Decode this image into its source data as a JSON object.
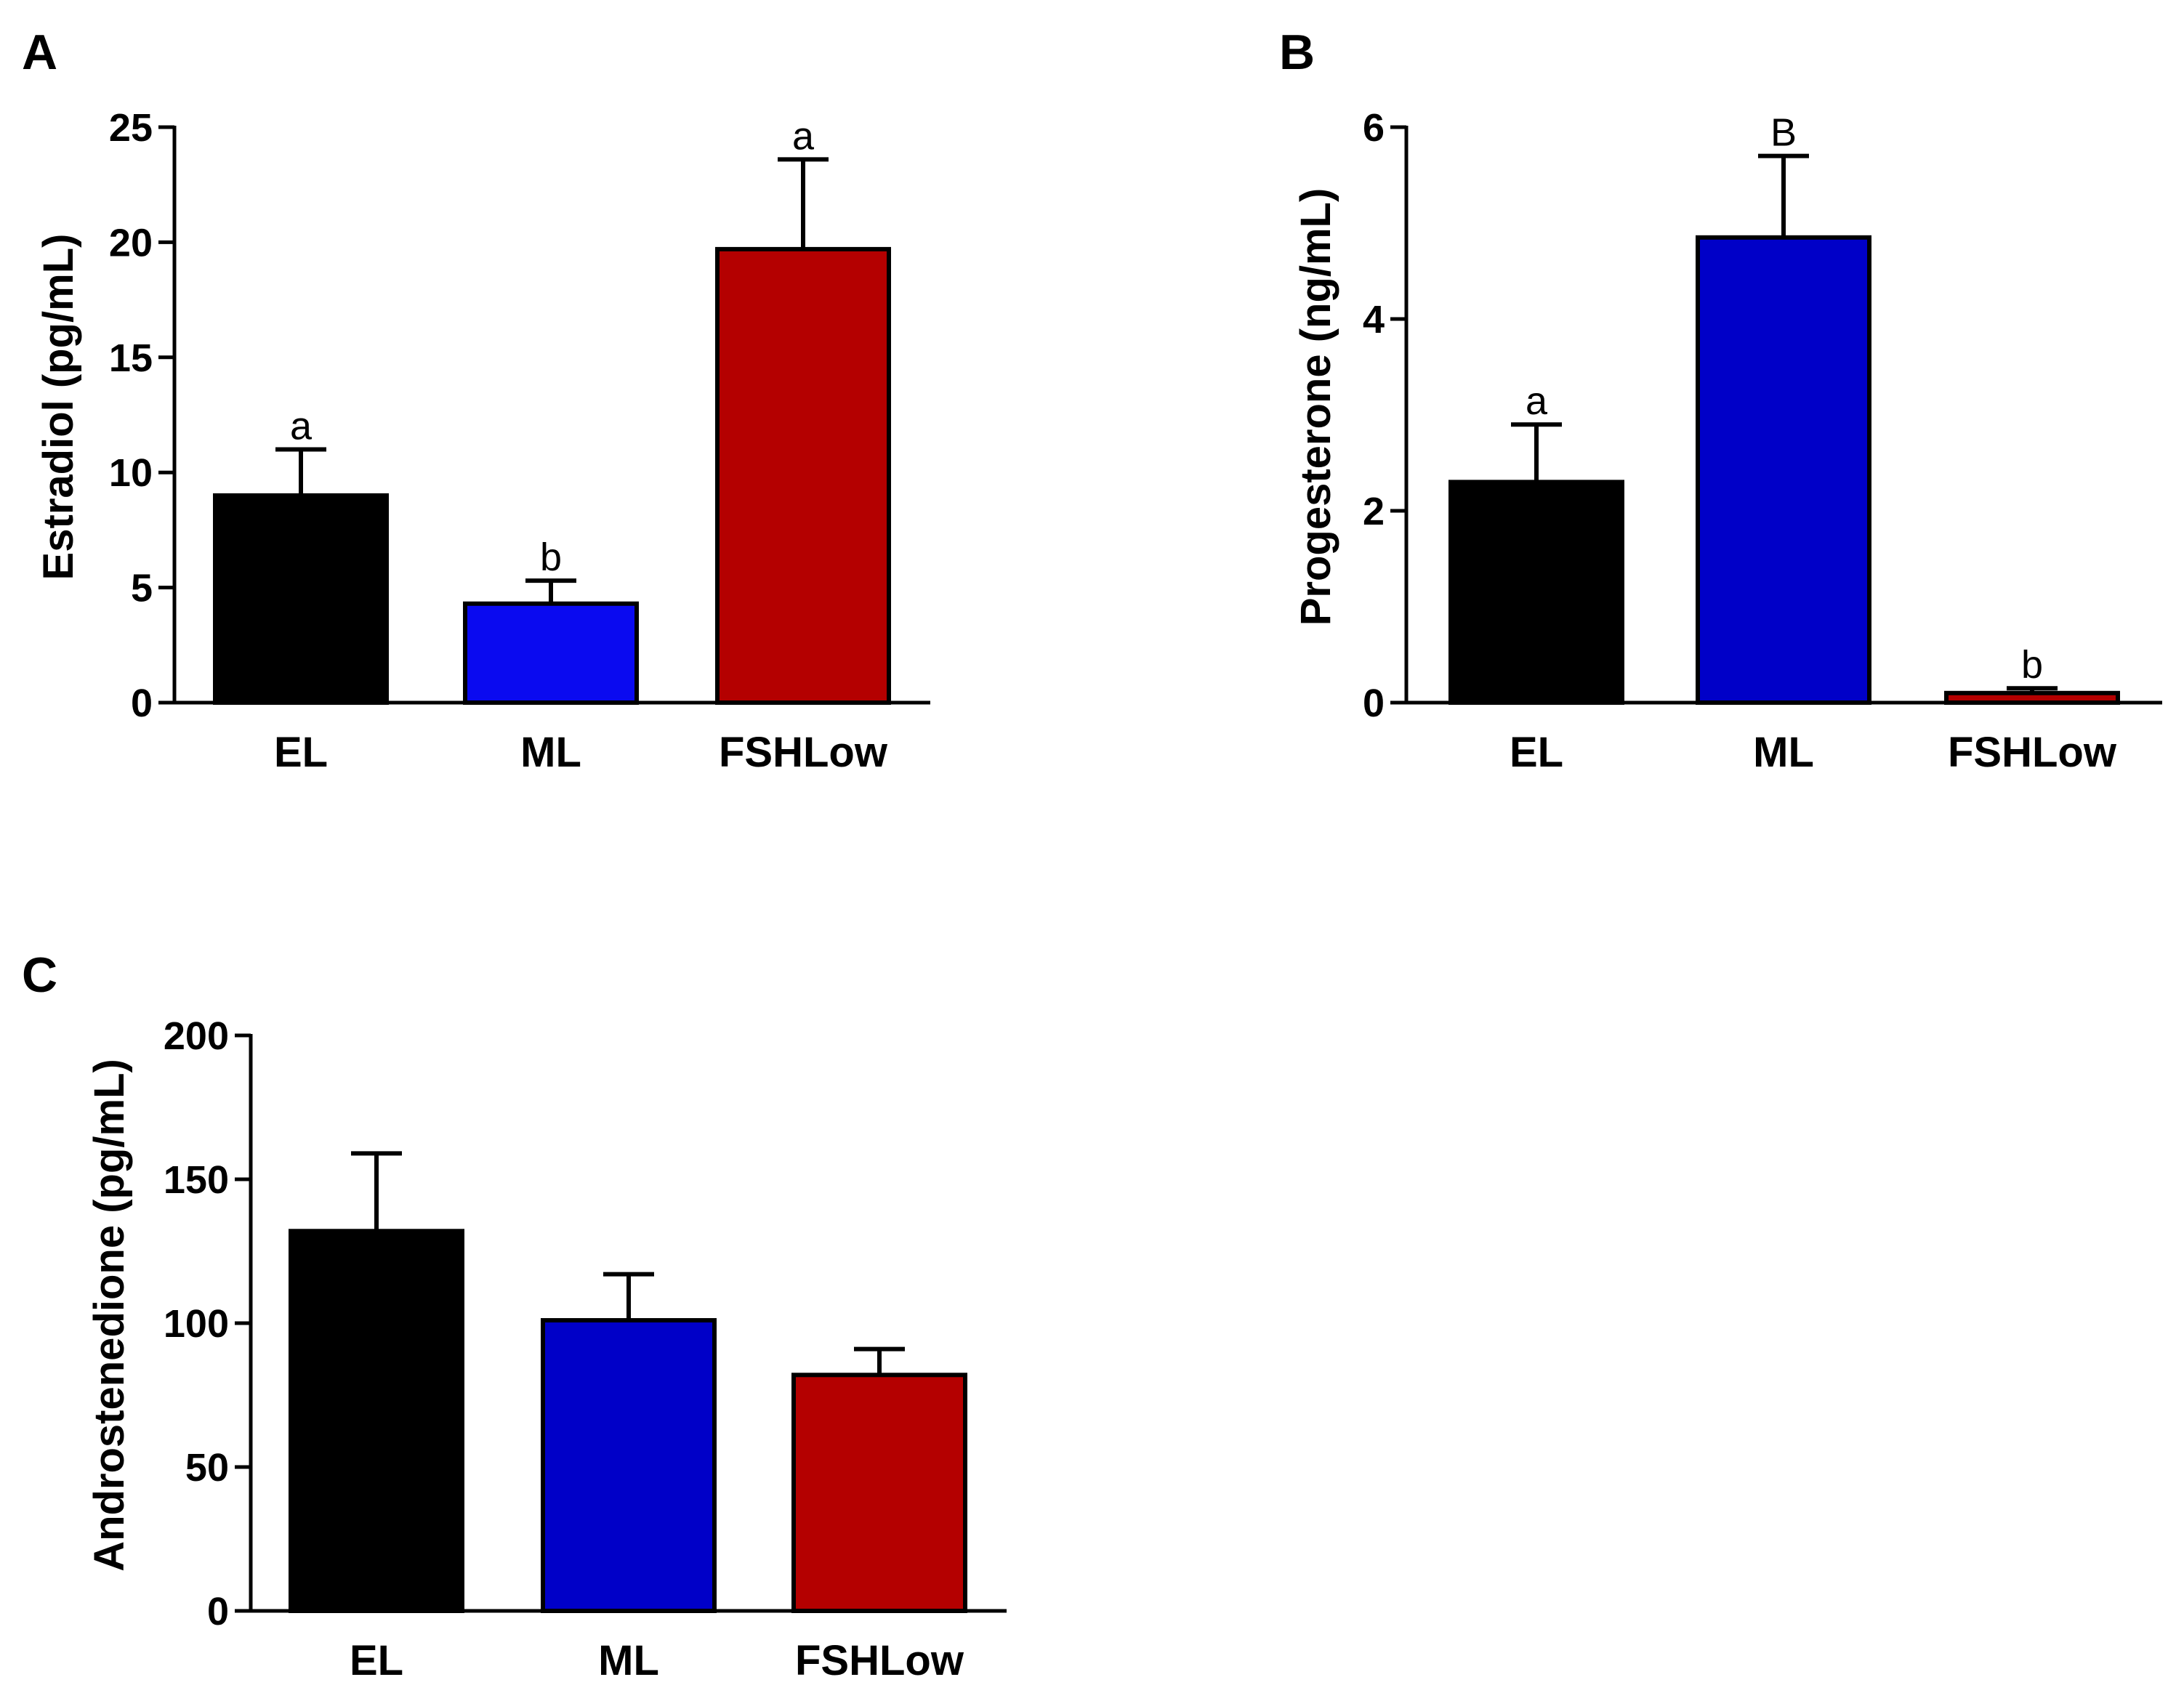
{
  "chart_data": [
    {
      "panel": "A",
      "type": "bar",
      "categories": [
        "EL",
        "ML",
        "FSHLow"
      ],
      "values": [
        9.0,
        4.3,
        19.7
      ],
      "errors": [
        2.0,
        1.0,
        3.9
      ],
      "annotations": [
        "a",
        "b",
        "a"
      ],
      "ylabel": "Estradiol (pg/mL)",
      "ylim": [
        0,
        25
      ],
      "yticks": [
        0,
        5,
        10,
        15,
        20,
        25
      ],
      "colors": [
        "#000000",
        "#0a0af0",
        "#b40000"
      ],
      "grid": false
    },
    {
      "panel": "B",
      "type": "bar",
      "categories": [
        "EL",
        "ML",
        "FSHLow"
      ],
      "values": [
        2.3,
        4.85,
        0.1
      ],
      "errors": [
        0.6,
        0.85,
        0.05
      ],
      "annotations": [
        "a",
        "B",
        "b"
      ],
      "ylabel": "Progesterone (ng/mL)",
      "ylim": [
        0,
        6
      ],
      "yticks": [
        0,
        2,
        4,
        6
      ],
      "colors": [
        "#000000",
        "#0000c8",
        "#b40000"
      ],
      "grid": false
    },
    {
      "panel": "C",
      "type": "bar",
      "categories": [
        "EL",
        "ML",
        "FSHLow"
      ],
      "values": [
        132,
        101,
        82
      ],
      "errors": [
        27,
        16,
        9
      ],
      "annotations": [
        "",
        "",
        ""
      ],
      "ylabel": "Androstenedione (pg/mL)",
      "ylim": [
        0,
        200
      ],
      "yticks": [
        0,
        50,
        100,
        150,
        200
      ],
      "colors": [
        "#000000",
        "#0000c8",
        "#b40000"
      ],
      "grid": false
    }
  ]
}
